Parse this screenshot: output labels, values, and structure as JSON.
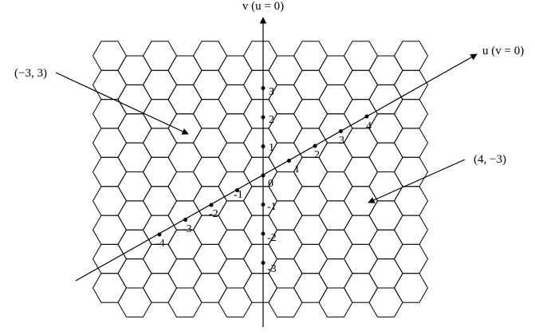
{
  "axes": {
    "v_label": "v (u = 0)",
    "u_label": "u (v = 0)"
  },
  "annotations": {
    "left_point": "(−3, 3)",
    "right_point": "(4, −3)"
  },
  "v_ticks": [
    "3",
    "2",
    "1",
    "-1",
    "-2",
    "-3"
  ],
  "u_ticks": [
    "1",
    "2",
    "3",
    "4",
    "-1",
    "-2",
    "-3",
    "-4"
  ],
  "origin_label": "0"
}
